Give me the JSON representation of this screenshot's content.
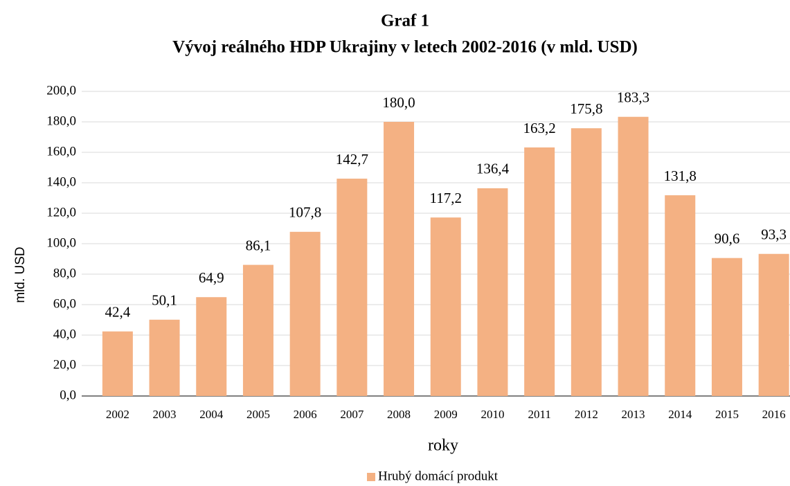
{
  "chart_data": {
    "type": "bar",
    "title": "Graf 1",
    "subtitle": "Vývoj reálného HDP Ukrajiny v letech 2002-2016 (v mld. USD)",
    "ylabel": "mld. USD",
    "xlabel": "roky",
    "categories": [
      "2002",
      "2003",
      "2004",
      "2005",
      "2006",
      "2007",
      "2008",
      "2009",
      "2010",
      "2011",
      "2012",
      "2013",
      "2014",
      "2015",
      "2016"
    ],
    "series": [
      {
        "name": "Hrubý domácí produkt",
        "color": "#f4b183",
        "values": [
          42.4,
          50.1,
          64.9,
          86.1,
          107.8,
          142.7,
          180.0,
          117.2,
          136.4,
          163.2,
          175.8,
          183.3,
          131.8,
          90.6,
          93.3
        ],
        "value_labels": [
          "42,4",
          "50,1",
          "64,9",
          "86,1",
          "107,8",
          "142,7",
          "180,0",
          "117,2",
          "136,4",
          "163,2",
          "175,8",
          "183,3",
          "131,8",
          "90,6",
          "93,3"
        ]
      }
    ],
    "ylim": [
      0,
      200
    ],
    "yticks": [
      {
        "value": 0,
        "label": "0,0"
      },
      {
        "value": 20,
        "label": "20,0"
      },
      {
        "value": 40,
        "label": "40,0"
      },
      {
        "value": 60,
        "label": "60,0"
      },
      {
        "value": 80,
        "label": "80,0"
      },
      {
        "value": 100,
        "label": "100,0"
      },
      {
        "value": 120,
        "label": "120,0"
      },
      {
        "value": 140,
        "label": "140,0"
      },
      {
        "value": 160,
        "label": "160,0"
      },
      {
        "value": 180,
        "label": "180,0"
      },
      {
        "value": 200,
        "label": "200,0"
      }
    ],
    "grid": true,
    "legend": "bottom"
  }
}
